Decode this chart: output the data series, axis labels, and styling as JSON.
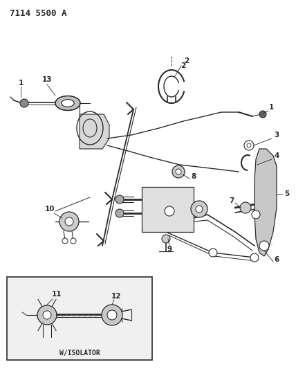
{
  "title": "7114 5500 A",
  "bg_color": "#ffffff",
  "line_color": "#2a2a2a",
  "title_fontsize": 9,
  "label_fontsize": 7.5,
  "wisolator_text": "W/ISOLATOR"
}
